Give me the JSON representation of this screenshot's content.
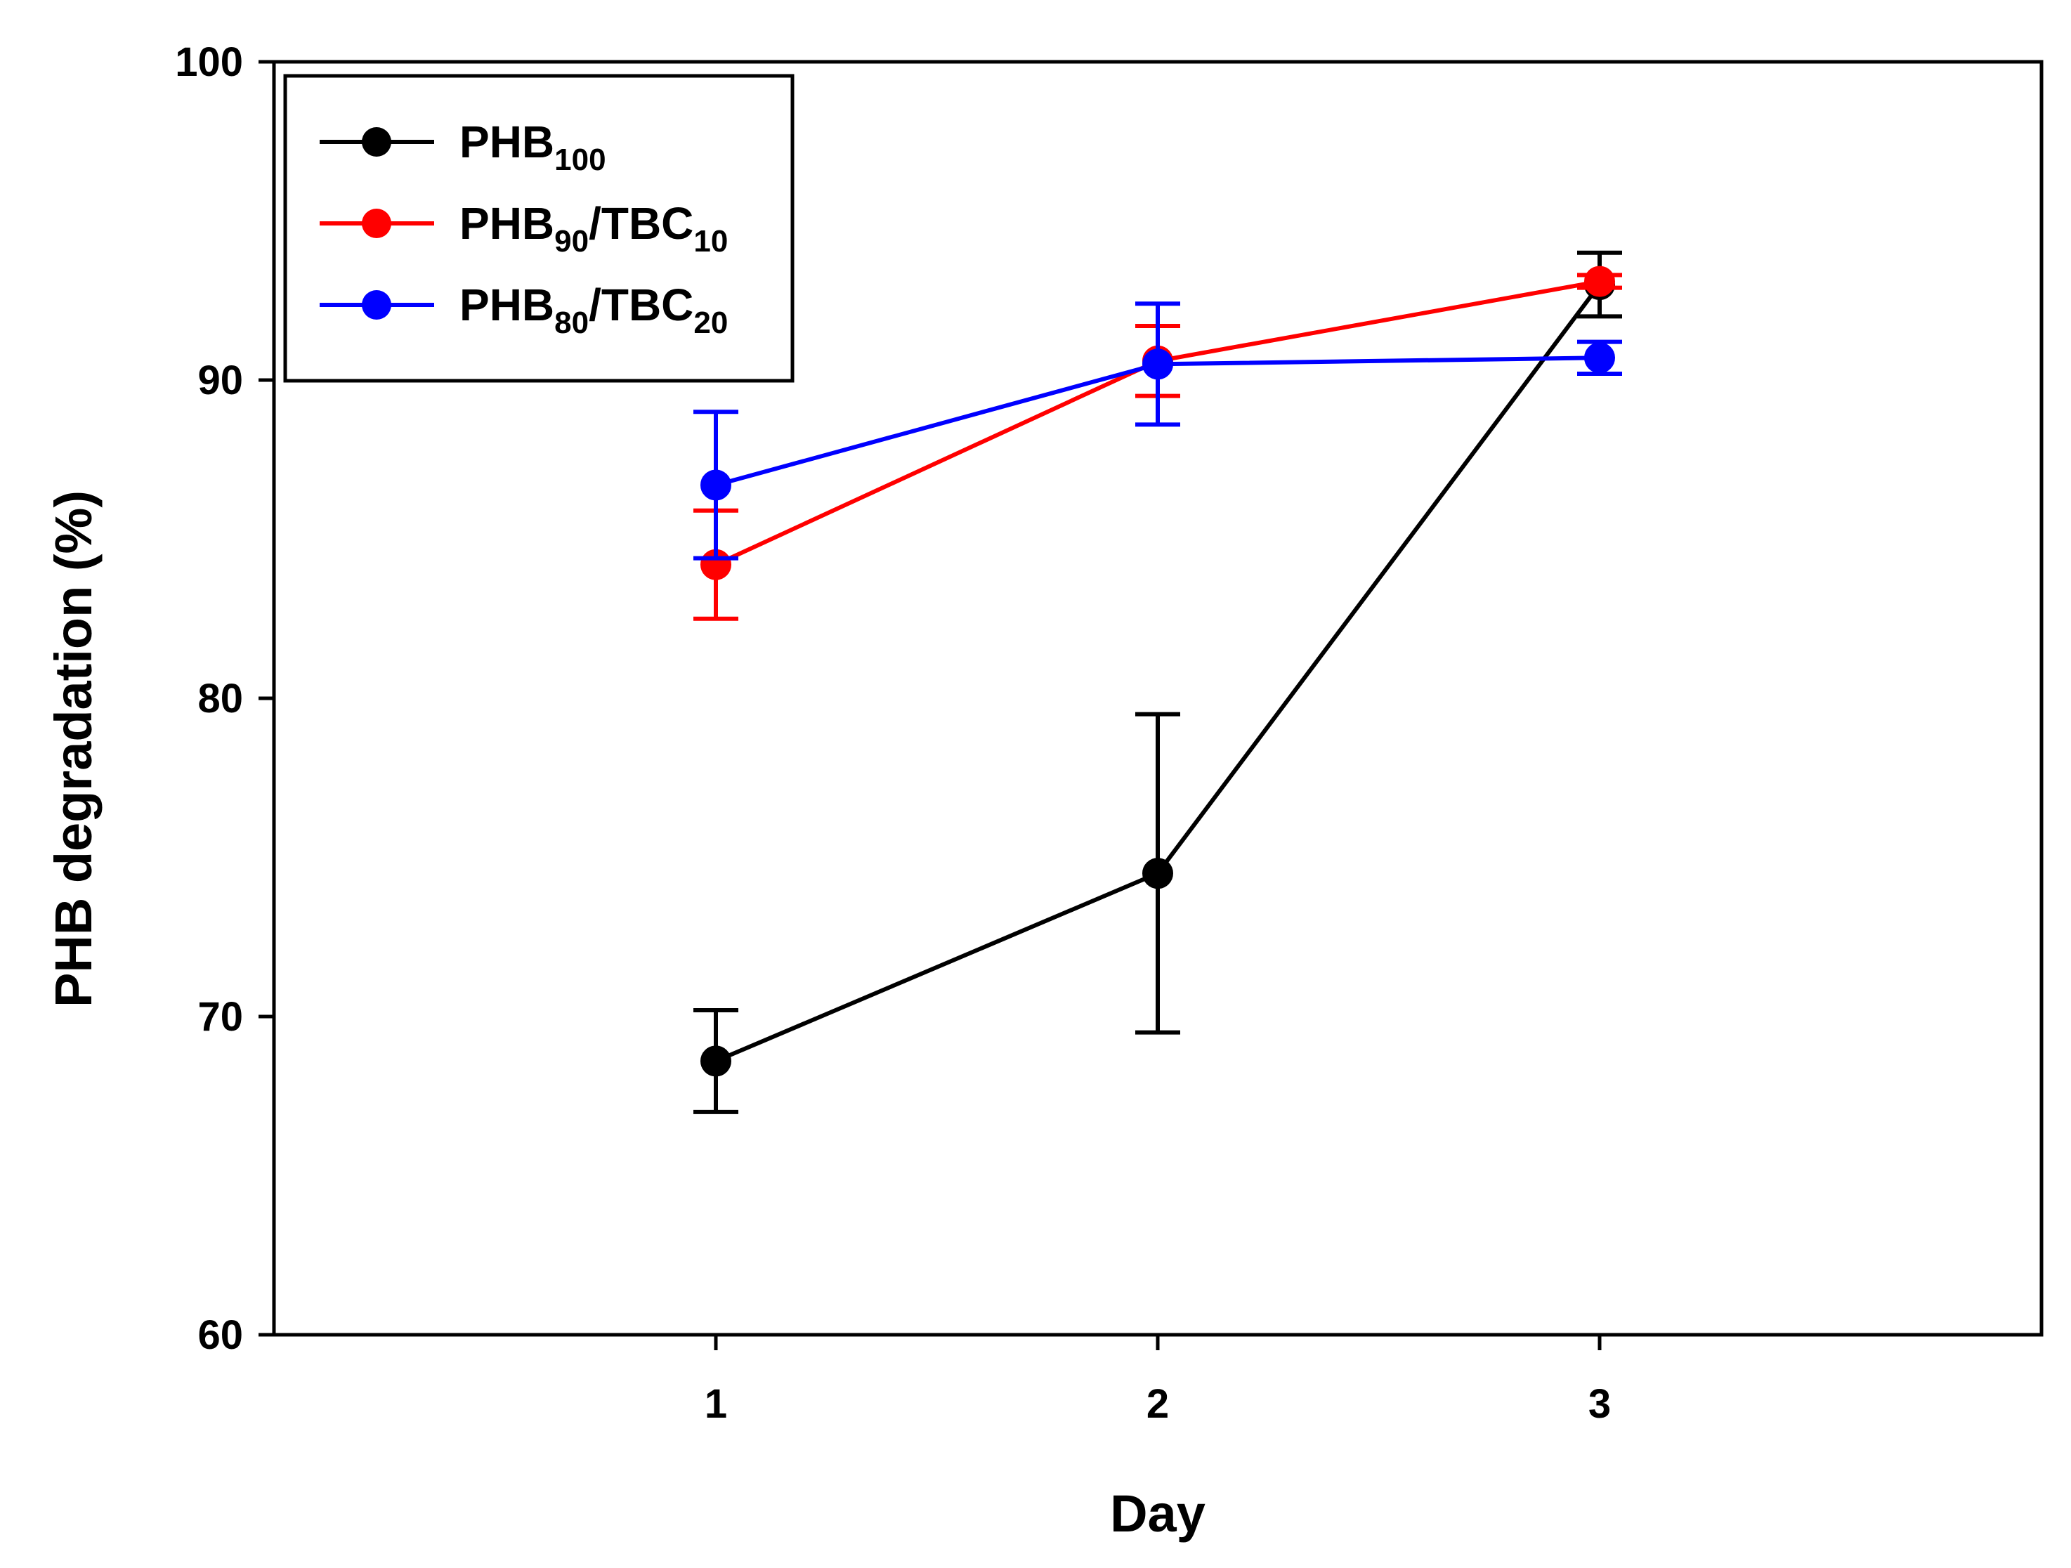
{
  "chart_data": {
    "type": "line",
    "title": "",
    "xlabel": "Day",
    "ylabel": "PHB degradation (%)",
    "x": [
      1,
      2,
      3
    ],
    "xlim": [
      0,
      4
    ],
    "ylim": [
      60,
      100
    ],
    "x_ticks": [
      1,
      2,
      3
    ],
    "y_ticks": [
      60,
      70,
      80,
      90,
      100
    ],
    "grid": false,
    "legend_position": "top-left",
    "series": [
      {
        "name": "PHB100",
        "label_main": "PHB",
        "label_sub1": "100",
        "label_mid": "",
        "label_sub2": "",
        "color": "#000000",
        "values": [
          68.6,
          74.5,
          93.0
        ],
        "errors": [
          1.6,
          5.0,
          1.0
        ]
      },
      {
        "name": "PHB90/TBC10",
        "label_main": "PHB",
        "label_sub1": "90",
        "label_mid": "/TBC",
        "label_sub2": "10",
        "color": "#ff0000",
        "values": [
          84.2,
          90.6,
          93.1
        ],
        "errors": [
          1.7,
          1.1,
          0.2
        ]
      },
      {
        "name": "PHB80/TBC20",
        "label_main": "PHB",
        "label_sub1": "80",
        "label_mid": "/TBC",
        "label_sub2": "20",
        "color": "#0000ff",
        "values": [
          86.7,
          90.5,
          90.7
        ],
        "errors": [
          2.3,
          1.9,
          0.5
        ]
      }
    ]
  }
}
